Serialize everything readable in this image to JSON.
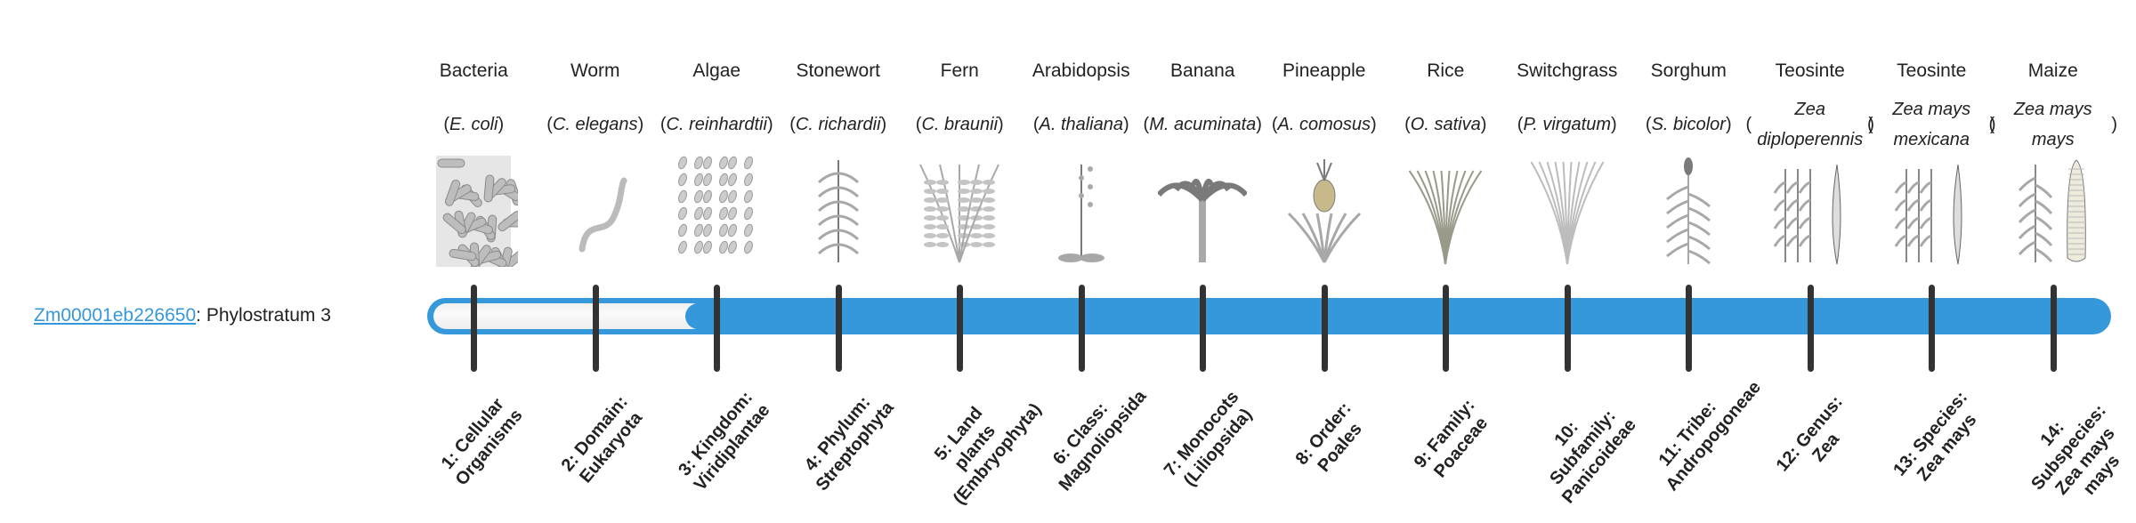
{
  "gene": {
    "id": "Zm00001eb226650",
    "separator": ": ",
    "label": "Phylostratum 3",
    "phylostratum": 3
  },
  "colors": {
    "accent": "#3598db",
    "tick": "#333333",
    "empty": "#f4f4f4"
  },
  "total_strata": 14,
  "organisms": [
    {
      "common": "Bacteria",
      "scientific": "E. coli",
      "icon": "bacteria-rods",
      "stratum": "1: Cellular Organisms"
    },
    {
      "common": "Worm",
      "scientific": "C. elegans",
      "icon": "worm",
      "stratum": "2: Domain: Eukaryota"
    },
    {
      "common": "Algae",
      "scientific": "C. reinhardtii",
      "icon": "algae-cells",
      "stratum": "3: Kingdom: Viridiplantae"
    },
    {
      "common": "Stonewort",
      "scientific": "C. richardii",
      "icon": "stonewort",
      "stratum": "4: Phylum: Streptophyta"
    },
    {
      "common": "Fern",
      "scientific": "C. braunii",
      "icon": "fern",
      "stratum": "5: Land plants (Embryophyta)"
    },
    {
      "common": "Arabidopsis",
      "scientific": "A. thaliana",
      "icon": "arabidopsis",
      "stratum": "6: Class: Magnoliopsida"
    },
    {
      "common": "Banana",
      "scientific": "M. acuminata",
      "icon": "banana-tree",
      "stratum": "7: Monocots (Liliopsida)"
    },
    {
      "common": "Pineapple",
      "scientific": "A. comosus",
      "icon": "pineapple",
      "stratum": "8: Order: Poales"
    },
    {
      "common": "Rice",
      "scientific": "O. sativa",
      "icon": "rice",
      "stratum": "9: Family: Poaceae"
    },
    {
      "common": "Switchgrass",
      "scientific": "P. virgatum",
      "icon": "switchgrass",
      "stratum": "10: Subfamily: Panicoideae"
    },
    {
      "common": "Sorghum",
      "scientific": "S. bicolor",
      "icon": "sorghum",
      "stratum": "11: Tribe: Andropogoneae"
    },
    {
      "common": "Teosinte",
      "scientific": "Zea diploperennis",
      "icon": "teosinte",
      "stratum": "12: Genus: Zea"
    },
    {
      "common": "Teosinte",
      "scientific": "Zea mays mexicana",
      "icon": "teosinte",
      "stratum": "13: Species: Zea mays"
    },
    {
      "common": "Maize",
      "scientific": "Zea mays mays",
      "icon": "maize",
      "stratum": "14: Subspecies: Zea mays mays"
    }
  ]
}
